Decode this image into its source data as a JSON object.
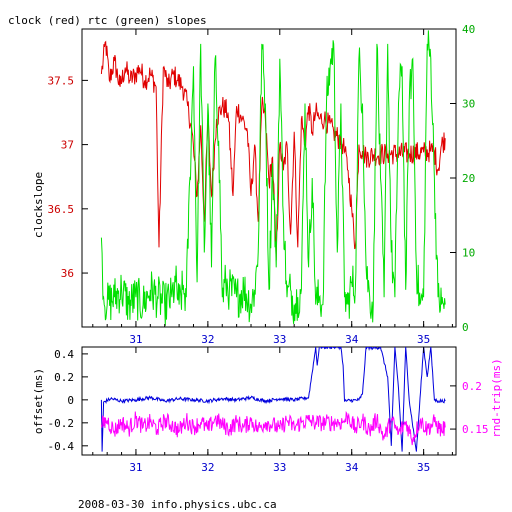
{
  "title": "clock (red) rtc (green) slopes",
  "footer": "2008-03-30 info.physics.ubc.ca",
  "colors": {
    "clock": "#e00000",
    "rtc": "#00e000",
    "offset": "#0000dd",
    "rndtrip": "#ff00ff",
    "axis": "#000000"
  },
  "chart_data": [
    {
      "type": "line",
      "title": "clock (red) rtc (green) slopes",
      "xlim": [
        30.25,
        35.45
      ],
      "x_ticks": [
        "31",
        "32",
        "33",
        "34",
        "35"
      ],
      "ylabel": "clockslope",
      "ylim_left": [
        35.58,
        37.9
      ],
      "y_ticks_left": [
        "36",
        "36.5",
        "37",
        "37.5"
      ],
      "ylim_right": [
        0,
        40
      ],
      "y_ticks_right": [
        "0",
        "10",
        "20",
        "30",
        "40"
      ],
      "series": [
        {
          "name": "clock",
          "axis": "left",
          "x": [
            30.52,
            30.58,
            30.63,
            30.7,
            30.78,
            30.85,
            30.92,
            31.0,
            31.05,
            31.12,
            31.2,
            31.28,
            31.32,
            31.38,
            31.45,
            31.52,
            31.58,
            31.65,
            31.72,
            31.78,
            31.85,
            31.9,
            31.95,
            32.0,
            32.05,
            32.12,
            32.2,
            32.28,
            32.35,
            32.4,
            32.48,
            32.55,
            32.6,
            32.65,
            32.7,
            32.75,
            32.8,
            32.85,
            32.9,
            32.95,
            33.0,
            33.05,
            33.1,
            33.15,
            33.2,
            33.25,
            33.3,
            33.35,
            33.4,
            33.45,
            33.5,
            33.55,
            33.62,
            33.75,
            33.88,
            33.95,
            34.0,
            34.05,
            34.1,
            34.15,
            34.2,
            34.3,
            34.5,
            34.8,
            35.0,
            35.1,
            35.15,
            35.2,
            35.25,
            35.3
          ],
          "y": [
            37.55,
            37.8,
            37.5,
            37.65,
            37.45,
            37.6,
            37.5,
            37.55,
            37.6,
            37.5,
            37.55,
            37.45,
            36.2,
            37.6,
            37.45,
            37.55,
            37.5,
            37.45,
            37.3,
            37.1,
            36.6,
            37.15,
            36.4,
            37.2,
            36.6,
            37.2,
            37.3,
            37.25,
            36.6,
            37.3,
            37.2,
            37.1,
            36.6,
            37.0,
            36.4,
            37.3,
            37.2,
            36.7,
            36.9,
            36.1,
            37.0,
            36.8,
            37.0,
            36.3,
            37.1,
            36.2,
            37.2,
            37.0,
            37.3,
            37.1,
            37.25,
            37.2,
            37.2,
            37.1,
            37.0,
            36.8,
            36.5,
            36.2,
            37.0,
            36.95,
            36.9,
            36.92,
            36.93,
            36.93,
            36.94,
            36.95,
            36.95,
            36.8,
            37.0,
            37.05
          ]
        },
        {
          "name": "rtc",
          "axis": "right",
          "x": [
            30.52,
            30.55,
            30.6,
            30.7,
            30.8,
            30.9,
            31.0,
            31.1,
            31.2,
            31.3,
            31.4,
            31.5,
            31.55,
            31.6,
            31.65,
            31.7,
            31.75,
            31.8,
            31.85,
            31.9,
            31.95,
            32.0,
            32.05,
            32.1,
            32.15,
            32.2,
            32.25,
            32.3,
            32.4,
            32.5,
            32.6,
            32.65,
            32.7,
            32.75,
            32.8,
            32.85,
            32.9,
            32.95,
            33.0,
            33.05,
            33.1,
            33.15,
            33.2,
            33.25,
            33.3,
            33.35,
            33.4,
            33.45,
            33.5,
            33.55,
            33.6,
            33.65,
            33.7,
            33.75,
            33.8,
            33.85,
            33.9,
            33.95,
            34.0,
            34.05,
            34.1,
            34.15,
            34.2,
            34.25,
            34.3,
            34.35,
            34.4,
            34.45,
            34.5,
            34.55,
            34.6,
            34.65,
            34.7,
            34.75,
            34.8,
            34.85,
            34.9,
            34.95,
            35.0,
            35.05,
            35.1,
            35.15,
            35.2,
            35.25,
            35.3
          ],
          "y": [
            12,
            4,
            3,
            4,
            5,
            3,
            4,
            3,
            5,
            4,
            3,
            4,
            6,
            3,
            5,
            4,
            20,
            35,
            6,
            38,
            10,
            30,
            8,
            36,
            25,
            4,
            6,
            5,
            4,
            5,
            3,
            5,
            10,
            38,
            30,
            5,
            22,
            8,
            36,
            15,
            4,
            5,
            3,
            4,
            5,
            30,
            8,
            20,
            3,
            4,
            3,
            30,
            35,
            38,
            10,
            30,
            4,
            3,
            6,
            5,
            36,
            30,
            8,
            4,
            3,
            38,
            20,
            4,
            38,
            10,
            4,
            30,
            35,
            5,
            30,
            36,
            8,
            3,
            4,
            38,
            36,
            20,
            4,
            3,
            3
          ]
        }
      ]
    },
    {
      "type": "line",
      "xlim": [
        30.25,
        35.45
      ],
      "x_ticks": [
        "31",
        "32",
        "33",
        "34",
        "35"
      ],
      "ylabel": "offset(ms)",
      "ylim_left": [
        -0.48,
        0.46
      ],
      "y_ticks_left": [
        "0.4",
        "0.2",
        "0",
        "-0.2",
        "-0.4"
      ],
      "ylabel_right": "rnd-trip(ms)",
      "ylim_right": [
        0.12,
        0.245
      ],
      "y_ticks_right": [
        "0.2",
        "0.15"
      ],
      "series": [
        {
          "name": "offset",
          "axis": "left",
          "x": [
            30.52,
            30.53,
            30.55,
            30.65,
            30.8,
            31.0,
            31.2,
            31.4,
            31.6,
            31.8,
            32.0,
            32.2,
            32.4,
            32.6,
            32.8,
            33.0,
            33.2,
            33.4,
            33.5,
            33.52,
            33.55,
            33.85,
            33.88,
            33.9,
            34.1,
            34.15,
            34.2,
            34.3,
            34.4,
            34.5,
            34.55,
            34.6,
            34.65,
            34.7,
            34.75,
            34.8,
            34.9,
            35.0,
            35.05,
            35.1,
            35.15,
            35.2,
            35.3
          ],
          "y": [
            0.0,
            -0.45,
            -0.02,
            0.01,
            -0.01,
            0.0,
            0.02,
            -0.01,
            0.01,
            0.0,
            -0.01,
            0.01,
            0.0,
            0.02,
            -0.01,
            0.01,
            0.0,
            0.02,
            0.46,
            0.3,
            0.46,
            0.46,
            0.3,
            -0.01,
            0.0,
            0.05,
            0.46,
            0.45,
            0.46,
            0.2,
            -0.4,
            0.46,
            0.1,
            -0.45,
            0.46,
            0.0,
            -0.45,
            0.46,
            0.2,
            0.46,
            0.0,
            -0.01,
            -0.01
          ]
        },
        {
          "name": "rnd-trip",
          "axis": "right",
          "x": [
            30.52,
            30.6,
            30.7,
            30.8,
            30.9,
            31.0,
            31.1,
            31.2,
            31.3,
            31.4,
            31.5,
            31.6,
            31.7,
            31.8,
            31.9,
            32.0,
            32.1,
            32.2,
            32.3,
            32.4,
            32.5,
            32.6,
            32.7,
            32.8,
            32.9,
            33.0,
            33.1,
            33.2,
            33.3,
            33.4,
            33.5,
            33.88,
            33.95,
            34.05,
            34.15,
            34.25,
            34.35,
            34.45,
            34.55,
            34.65,
            34.75,
            34.85,
            34.95,
            35.05,
            35.15,
            35.25,
            35.3
          ],
          "y": [
            0.155,
            0.16,
            0.148,
            0.158,
            0.15,
            0.162,
            0.152,
            0.158,
            0.15,
            0.16,
            0.155,
            0.148,
            0.16,
            0.152,
            0.158,
            0.15,
            0.162,
            0.155,
            0.15,
            0.158,
            0.152,
            0.16,
            0.15,
            0.158,
            0.155,
            0.15,
            0.16,
            0.152,
            0.158,
            0.16,
            0.157,
            0.158,
            0.165,
            0.15,
            0.16,
            0.148,
            0.162,
            0.14,
            0.16,
            0.145,
            0.158,
            0.138,
            0.16,
            0.15,
            0.158,
            0.148,
            0.152
          ]
        }
      ]
    }
  ]
}
